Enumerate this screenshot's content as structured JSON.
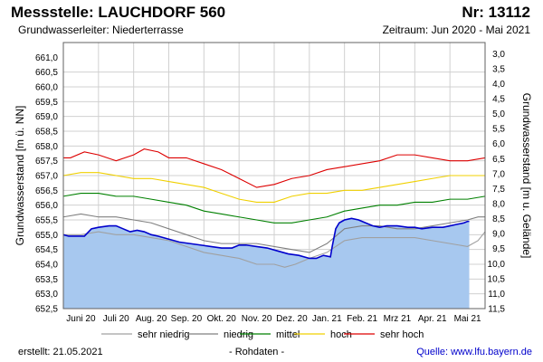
{
  "header": {
    "title": "Messstelle: LAUCHDORF 560",
    "nr": "Nr: 13112",
    "aquifer": "Grundwasserleiter:   Niederterrasse",
    "period": "Zeitraum: Jun 2020 - Mai 2021"
  },
  "footer": {
    "created": "erstellt:  21.05.2021",
    "rohdaten": "- Rohdaten -",
    "source": "Quelle:  www.lfu.bayern.de"
  },
  "colors": {
    "area": "#a7c8ef",
    "measured": "#0000cc",
    "sehr_niedrig": "#a0a0a0",
    "niedrig": "#808080",
    "mittel": "#008000",
    "hoch": "#f0d000",
    "sehr_hoch": "#dd0000",
    "grid": "#d0d0d0"
  },
  "chart_data": {
    "type": "line",
    "title": "Messstelle: LAUCHDORF 560",
    "ylabel": "Grundwasserstand [m ü. NN]",
    "y2label": "Grundwasserstand [m u. Gelände]",
    "ylim": [
      652.5,
      661.5
    ],
    "y2lim": [
      11.5,
      2.5
    ],
    "xlim": [
      0,
      12
    ],
    "yticks": [
      "661,0",
      "660,5",
      "660,0",
      "659,5",
      "659,0",
      "658,5",
      "658,0",
      "657,5",
      "657,0",
      "656,5",
      "656,0",
      "655,5",
      "655,0",
      "654,5",
      "654,0",
      "653,5",
      "653,0",
      "652,5"
    ],
    "y2ticks": [
      "3,0",
      "3,5",
      "4,0",
      "4,5",
      "5,0",
      "5,5",
      "6,0",
      "6,5",
      "7,0",
      "7,5",
      "8,0",
      "8,5",
      "9,0",
      "9,5",
      "10,0",
      "10,5",
      "11,0",
      "11,5"
    ],
    "x_ticklabels": [
      "Juni 20",
      "Juli 20",
      "Aug. 20",
      "Sep. 20",
      "Okt. 20",
      "Nov. 20",
      "Dez. 20",
      "Jan. 21",
      "Feb. 21",
      "Mrz 21",
      "Apr. 21",
      "Mai 21"
    ],
    "legend": [
      "sehr niedrig",
      "niedrig",
      "mittel",
      "hoch",
      "sehr hoch"
    ],
    "series": [
      {
        "name": "sehr hoch",
        "x": [
          0,
          0.2,
          0.6,
          1,
          1.5,
          2,
          2.3,
          2.7,
          3,
          3.5,
          4,
          4.5,
          5,
          5.5,
          6,
          6.5,
          7,
          7.5,
          8,
          8.5,
          9,
          9.5,
          10,
          10.5,
          11,
          11.5,
          12
        ],
        "values": [
          657.6,
          657.6,
          657.8,
          657.7,
          657.5,
          657.7,
          657.9,
          657.8,
          657.6,
          657.6,
          657.4,
          657.2,
          656.9,
          656.6,
          656.7,
          656.9,
          657.0,
          657.2,
          657.3,
          657.4,
          657.5,
          657.7,
          657.7,
          657.6,
          657.5,
          657.5,
          657.6
        ]
      },
      {
        "name": "hoch",
        "x": [
          0,
          0.5,
          1,
          1.5,
          2,
          2.5,
          3,
          3.5,
          4,
          4.5,
          5,
          5.5,
          6,
          6.5,
          7,
          7.5,
          8,
          8.5,
          9,
          9.5,
          10,
          10.5,
          11,
          11.5,
          12
        ],
        "values": [
          657.0,
          657.1,
          657.1,
          657.0,
          656.9,
          656.9,
          656.8,
          656.7,
          656.6,
          656.4,
          656.2,
          656.1,
          656.1,
          656.3,
          656.4,
          656.4,
          656.5,
          656.5,
          656.6,
          656.7,
          656.8,
          656.9,
          657.0,
          657.0,
          657.0
        ]
      },
      {
        "name": "mittel",
        "x": [
          0,
          0.5,
          1,
          1.5,
          2,
          2.5,
          3,
          3.5,
          4,
          4.5,
          5,
          5.5,
          6,
          6.5,
          7,
          7.5,
          8,
          8.5,
          9,
          9.5,
          10,
          10.5,
          11,
          11.5,
          12
        ],
        "values": [
          656.3,
          656.4,
          656.4,
          656.3,
          656.3,
          656.2,
          656.1,
          656.0,
          655.8,
          655.7,
          655.6,
          655.5,
          655.4,
          655.4,
          655.5,
          655.6,
          655.8,
          655.9,
          656.0,
          656.0,
          656.1,
          656.1,
          656.2,
          656.2,
          656.3
        ]
      },
      {
        "name": "niedrig",
        "x": [
          0,
          0.5,
          1,
          1.5,
          2,
          2.5,
          3,
          3.5,
          4,
          4.5,
          5,
          5.5,
          6,
          6.5,
          7,
          7.5,
          8,
          8.5,
          9,
          9.5,
          10,
          10.5,
          11,
          11.5,
          11.8,
          12
        ],
        "values": [
          655.6,
          655.7,
          655.6,
          655.6,
          655.5,
          655.4,
          655.2,
          655.0,
          654.8,
          654.7,
          654.7,
          654.7,
          654.6,
          654.5,
          654.4,
          654.7,
          655.2,
          655.3,
          655.3,
          655.2,
          655.2,
          655.3,
          655.4,
          655.5,
          655.6,
          655.6
        ]
      },
      {
        "name": "sehr niedrig",
        "x": [
          0,
          0.5,
          1,
          1.5,
          2,
          2.5,
          3,
          3.5,
          4,
          4.5,
          5,
          5.5,
          6,
          6.3,
          6.6,
          7,
          7.5,
          8,
          8.5,
          9,
          9.5,
          10,
          10.5,
          11,
          11.5,
          11.8,
          12
        ],
        "values": [
          655.0,
          655.0,
          655.1,
          655.0,
          655.0,
          654.9,
          654.8,
          654.6,
          654.4,
          654.3,
          654.2,
          654.0,
          654.0,
          653.9,
          654.0,
          654.2,
          654.4,
          654.8,
          654.9,
          654.9,
          654.9,
          654.9,
          654.8,
          654.7,
          654.6,
          654.8,
          655.1
        ]
      },
      {
        "name": "Messwerte",
        "x": [
          0,
          0.15,
          0.3,
          0.45,
          0.6,
          0.8,
          1,
          1.3,
          1.5,
          1.7,
          1.9,
          2.1,
          2.3,
          2.5,
          2.7,
          3,
          3.3,
          3.6,
          3.9,
          4.2,
          4.5,
          4.8,
          5,
          5.2,
          5.5,
          5.8,
          6.1,
          6.4,
          6.7,
          7,
          7.2,
          7.4,
          7.6,
          7.65,
          7.7,
          7.75,
          7.85,
          8,
          8.2,
          8.4,
          8.6,
          8.8,
          9,
          9.2,
          9.5,
          9.8,
          10,
          10.2,
          10.5,
          10.8,
          11,
          11.2,
          11.4,
          11.5,
          11.55
        ],
        "values": [
          655.0,
          654.95,
          654.95,
          654.95,
          654.95,
          655.2,
          655.25,
          655.3,
          655.3,
          655.2,
          655.1,
          655.15,
          655.1,
          655.0,
          654.95,
          654.85,
          654.75,
          654.7,
          654.65,
          654.6,
          654.55,
          654.55,
          654.65,
          654.65,
          654.6,
          654.55,
          654.45,
          654.35,
          654.3,
          654.2,
          654.2,
          654.3,
          654.25,
          654.6,
          654.9,
          655.2,
          655.4,
          655.5,
          655.55,
          655.5,
          655.4,
          655.3,
          655.25,
          655.3,
          655.3,
          655.25,
          655.25,
          655.2,
          655.25,
          655.25,
          655.3,
          655.35,
          655.4,
          655.45,
          655.45
        ]
      }
    ]
  }
}
